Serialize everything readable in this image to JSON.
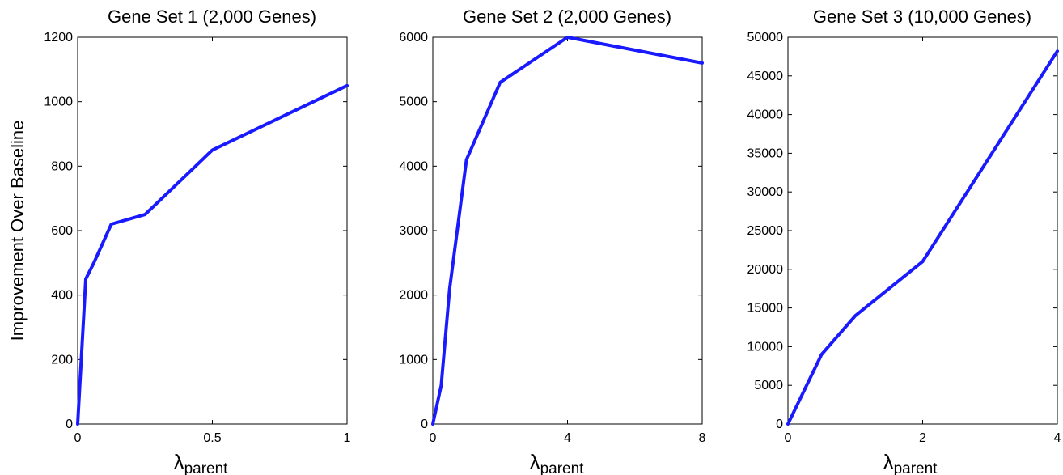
{
  "figure": {
    "ylabel": "Improvement Over Baseline",
    "line_color": "#1a1aff"
  },
  "chart_data": [
    {
      "type": "line",
      "title": "Gene Set 1 (2,000 Genes)",
      "xlabel_symbol": "λ",
      "xlabel_subscript": "parent",
      "ylabel": "Improvement Over Baseline",
      "xlim": [
        0,
        1
      ],
      "ylim": [
        0,
        1200
      ],
      "xticks": [
        0,
        0.5,
        1
      ],
      "xtick_labels": [
        "0",
        "0.5",
        "1"
      ],
      "yticks": [
        0,
        200,
        400,
        600,
        800,
        1000,
        1200
      ],
      "ytick_labels": [
        "0",
        "200",
        "400",
        "600",
        "800",
        "1000",
        "1200"
      ],
      "grid": false,
      "series": [
        {
          "x": [
            0,
            0.03,
            0.06,
            0.125,
            0.25,
            0.5,
            1
          ],
          "y": [
            0,
            450,
            500,
            620,
            650,
            850,
            1050
          ]
        }
      ]
    },
    {
      "type": "line",
      "title": "Gene Set 2 (2,000 Genes)",
      "xlabel_symbol": "λ",
      "xlabel_subscript": "parent",
      "ylabel": "",
      "xlim": [
        0,
        8
      ],
      "ylim": [
        0,
        6000
      ],
      "xticks": [
        0,
        4,
        8
      ],
      "xtick_labels": [
        "0",
        "4",
        "8"
      ],
      "yticks": [
        0,
        1000,
        2000,
        3000,
        4000,
        5000,
        6000
      ],
      "ytick_labels": [
        "0",
        "1000",
        "2000",
        "3000",
        "4000",
        "5000",
        "6000"
      ],
      "grid": false,
      "series": [
        {
          "x": [
            0,
            0.25,
            0.5,
            1,
            2,
            4,
            8
          ],
          "y": [
            0,
            600,
            2100,
            4100,
            5300,
            6000,
            5600
          ]
        }
      ]
    },
    {
      "type": "line",
      "title": "Gene Set 3 (10,000 Genes)",
      "xlabel_symbol": "λ",
      "xlabel_subscript": "parent",
      "ylabel": "",
      "xlim": [
        0,
        4
      ],
      "ylim": [
        0,
        50000
      ],
      "xticks": [
        0,
        2,
        4
      ],
      "xtick_labels": [
        "0",
        "2",
        "4"
      ],
      "yticks": [
        0,
        5000,
        10000,
        15000,
        20000,
        25000,
        30000,
        35000,
        40000,
        45000,
        50000
      ],
      "ytick_labels": [
        "0",
        "5000",
        "10000",
        "15000",
        "20000",
        "25000",
        "30000",
        "35000",
        "40000",
        "45000",
        "50000"
      ],
      "grid": false,
      "series": [
        {
          "x": [
            0,
            0.5,
            1,
            2,
            4
          ],
          "y": [
            0,
            9000,
            14000,
            21000,
            48200
          ]
        }
      ]
    }
  ]
}
